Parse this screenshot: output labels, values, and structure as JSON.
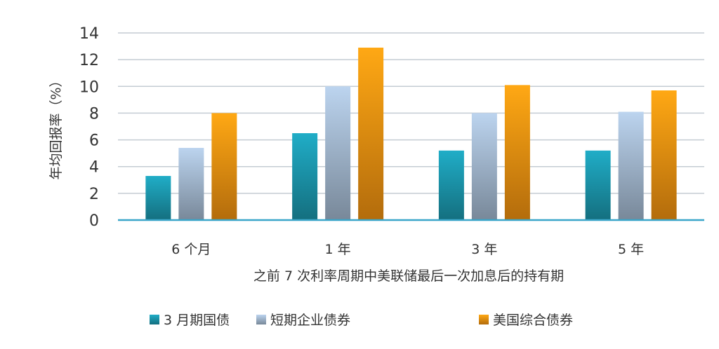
{
  "chart_data": {
    "type": "bar",
    "categories": [
      "6 个月",
      "1 年",
      "3 年",
      "5 年"
    ],
    "series": [
      {
        "name": "3 月期国债",
        "values": [
          3.3,
          6.5,
          5.2,
          5.2
        ],
        "color": "#1a8ea3"
      },
      {
        "name": "短期企业债券",
        "values": [
          5.4,
          10.0,
          8.0,
          8.1
        ],
        "color": "#9aaec4"
      },
      {
        "name": "美国综合债券",
        "values": [
          8.0,
          12.9,
          10.1,
          9.7
        ],
        "color": "#e68a10"
      }
    ],
    "xlabel": "之前 7 次利率周期中美联储最后一次加息后的持有期",
    "ylabel": "年均回报率（%）",
    "ylim": [
      0,
      14
    ],
    "yticks": [
      0,
      2,
      4,
      6,
      8,
      10,
      12,
      14
    ],
    "grid": true,
    "legend_position": "bottom"
  }
}
